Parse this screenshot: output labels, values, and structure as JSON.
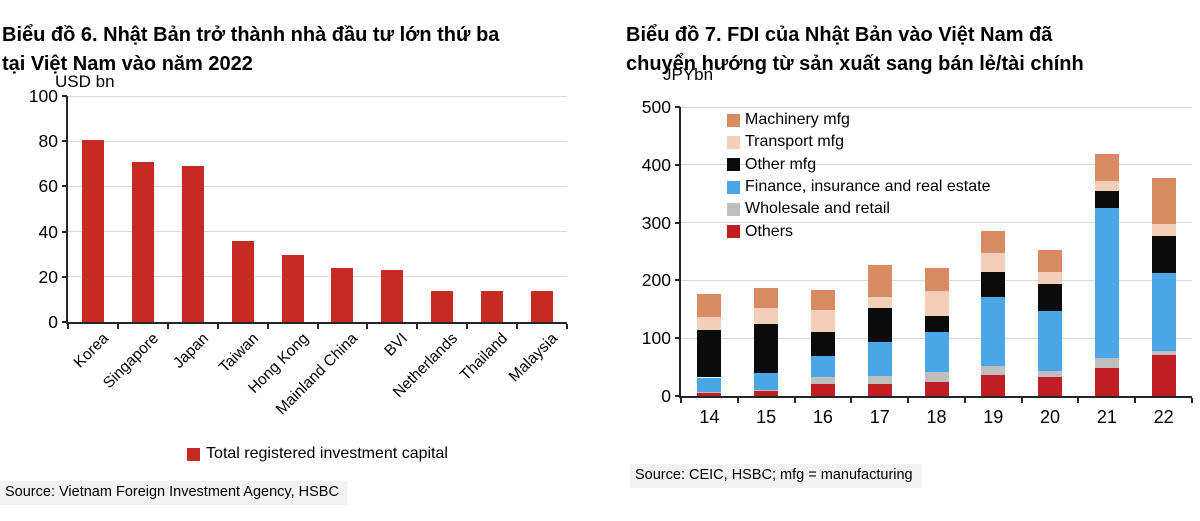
{
  "colors": {
    "gridline": "#DADADA",
    "axis": "#262626",
    "source_background": "#F2F2F2",
    "title_text": "#000000"
  },
  "chart_data": [
    {
      "id": "bieu-do-6",
      "type": "bar",
      "title": "Biểu đồ 6. Nhật Bản trở thành nhà đầu tư lớn thứ ba tại Việt Nam vào năm 2022",
      "title_lines": [
        "Biểu đồ 6. Nhật Bản trở thành nhà đầu tư lớn thứ ba",
        "tại Việt Nam vào năm 2022"
      ],
      "unit_label": "USD bn",
      "categories": [
        "Korea",
        "Singapore",
        "Japan",
        "Taiwan",
        "Hong Kong",
        "Mainland China",
        "BVI",
        "Netherlands",
        "Thailand",
        "Malaysia"
      ],
      "values": [
        80.5,
        71,
        69,
        36,
        29.5,
        24,
        23,
        13.7,
        13.7,
        13.7
      ],
      "bar_color": "#C52B23",
      "legend": [
        "Total registered investment capital"
      ],
      "ylim": [
        0,
        100
      ],
      "ytick_step": 20,
      "grid": true,
      "legend_position": "bottom-center",
      "source": "Source: Vietnam Foreign Investment Agency, HSBC"
    },
    {
      "id": "bieu-do-7",
      "type": "stacked-bar",
      "title": "Biểu đồ 7. FDI của Nhật Bản vào Việt Nam đã chuyển hướng từ sản xuất sang bán lẻ/tài chính",
      "title_lines": [
        "Biểu đồ 7. FDI của Nhật Bản vào Việt Nam đã",
        "chuyển hướng từ sản xuất sang bán lẻ/tài chính"
      ],
      "unit_label": "JPYbn",
      "categories": [
        "14",
        "15",
        "16",
        "17",
        "18",
        "19",
        "20",
        "21",
        "22"
      ],
      "series": [
        {
          "name": "Others",
          "color": "#C01E23",
          "values": [
            6,
            8,
            20,
            21,
            25,
            36,
            33,
            49,
            71
          ]
        },
        {
          "name": "Wholesale and retail",
          "color": "#BFBFBF",
          "values": [
            1,
            2,
            13,
            14,
            16,
            16,
            10,
            16,
            7
          ]
        },
        {
          "name": "Finance, insurance and real estate",
          "color": "#4AA6E4",
          "values": [
            25,
            30,
            36,
            58,
            70,
            120,
            104,
            260,
            134
          ]
        },
        {
          "name": "Other mfg",
          "color": "#0B0B0B",
          "values": [
            83,
            84,
            42,
            59,
            27,
            43,
            46,
            30,
            65
          ]
        },
        {
          "name": "Transport mfg",
          "color": "#F3CFBA",
          "values": [
            22,
            29,
            38,
            19,
            43,
            33,
            21,
            17,
            20
          ]
        },
        {
          "name": "Machinery mfg",
          "color": "#D88A63",
          "values": [
            39,
            34,
            34,
            56,
            40,
            38,
            38,
            46,
            80
          ]
        }
      ],
      "legend_order_top_to_bottom": [
        "Machinery mfg",
        "Transport mfg",
        "Other mfg",
        "Finance, insurance and real estate",
        "Wholesale and retail",
        "Others"
      ],
      "ylim": [
        0,
        500
      ],
      "ytick_step": 100,
      "grid": true,
      "legend_position": "top-left-inside",
      "source": "Source: CEIC, HSBC; mfg = manufacturing"
    }
  ]
}
